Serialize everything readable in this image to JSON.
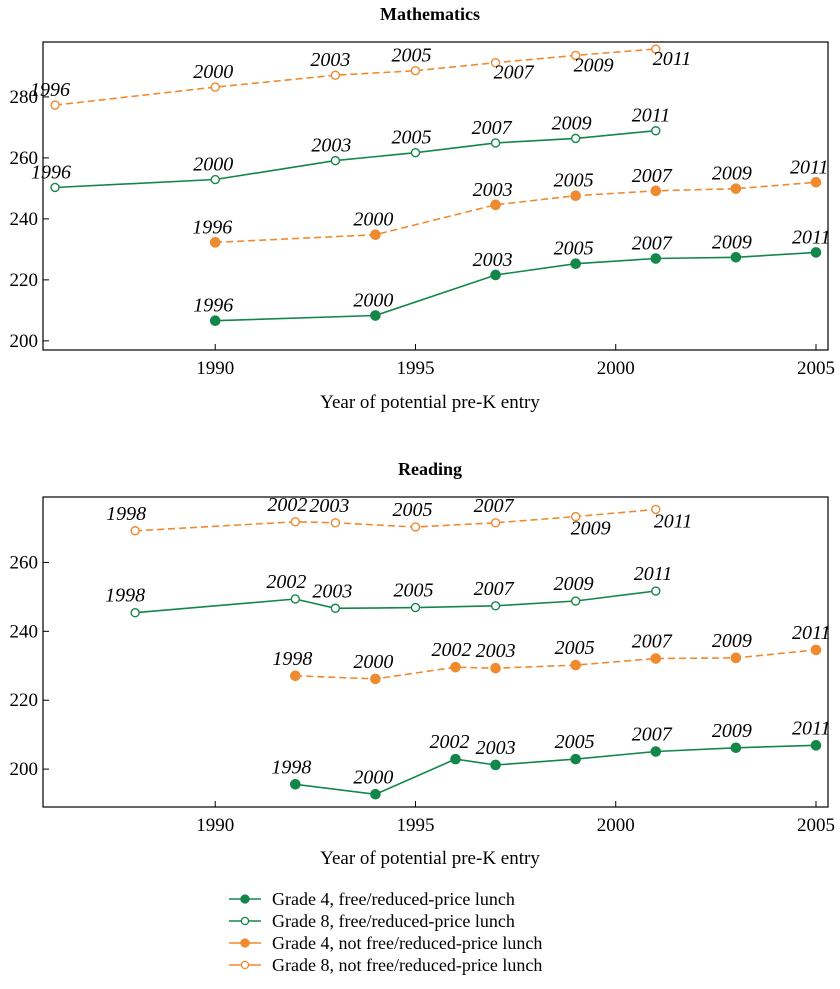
{
  "chart_data": [
    {
      "type": "line",
      "title": "Mathematics",
      "xlabel": "Year of potential pre-K entry",
      "ylabel": "",
      "xlim": [
        1985.7,
        2005.3
      ],
      "ylim": [
        197,
        298
      ],
      "xticks": [
        1990,
        1995,
        2000,
        2005
      ],
      "yticks": [
        200,
        220,
        240,
        260,
        280
      ],
      "grid": false,
      "series": [
        {
          "name": "Grade 8, not free/reduced-price lunch",
          "color": "#ef8a2f",
          "dashed": true,
          "filled": false,
          "x": [
            1986,
            1990,
            1993,
            1995,
            1997,
            1999,
            2001
          ],
          "y": [
            277.3,
            283.2,
            287.1,
            288.6,
            291.2,
            293.6,
            295.7
          ],
          "labels": [
            "1996",
            "2000",
            "2003",
            "2005",
            "2007",
            "2009",
            "2011"
          ]
        },
        {
          "name": "Grade 8, free/reduced-price lunch",
          "color": "#13874a",
          "dashed": false,
          "filled": false,
          "x": [
            1986,
            1990,
            1993,
            1995,
            1997,
            1999,
            2001
          ],
          "y": [
            250.3,
            252.9,
            259.1,
            261.7,
            264.9,
            266.4,
            268.9
          ],
          "labels": [
            "1996",
            "2000",
            "2003",
            "2005",
            "2007",
            "2009",
            "2011"
          ]
        },
        {
          "name": "Grade 4, not free/reduced-price lunch",
          "color": "#ef8a2f",
          "dashed": true,
          "filled": true,
          "x": [
            1990,
            1994,
            1997,
            1999,
            2001,
            2003,
            2005
          ],
          "y": [
            232.3,
            234.8,
            244.6,
            247.6,
            249.2,
            249.9,
            252.0
          ],
          "labels": [
            "1996",
            "2000",
            "2003",
            "2005",
            "2007",
            "2009",
            "2011"
          ]
        },
        {
          "name": "Grade 4, free/reduced-price lunch",
          "color": "#13874a",
          "dashed": false,
          "filled": true,
          "x": [
            1990,
            1994,
            1997,
            1999,
            2001,
            2003,
            2005
          ],
          "y": [
            206.6,
            208.3,
            221.6,
            225.3,
            227.0,
            227.4,
            229.0
          ],
          "labels": [
            "1996",
            "2000",
            "2003",
            "2005",
            "2007",
            "2009",
            "2011"
          ]
        }
      ]
    },
    {
      "type": "line",
      "title": "Reading",
      "xlabel": "Year of potential pre-K entry",
      "ylabel": "",
      "xlim": [
        1985.7,
        2005.3
      ],
      "ylim": [
        189,
        279
      ],
      "xticks": [
        1990,
        1995,
        2000,
        2005
      ],
      "yticks": [
        200,
        220,
        240,
        260
      ],
      "grid": false,
      "series": [
        {
          "name": "Grade 8, not free/reduced-price lunch",
          "color": "#ef8a2f",
          "dashed": true,
          "filled": false,
          "x": [
            1988,
            1992,
            1993,
            1995,
            1997,
            1999,
            2001
          ],
          "y": [
            269.2,
            271.8,
            271.5,
            270.3,
            271.5,
            273.3,
            275.4
          ],
          "labels": [
            "1998",
            "2002",
            "2003",
            "2005",
            "2007",
            "2009",
            "2011"
          ]
        },
        {
          "name": "Grade 8, free/reduced-price lunch",
          "color": "#13874a",
          "dashed": false,
          "filled": false,
          "x": [
            1988,
            1992,
            1993,
            1995,
            1997,
            1999,
            2001
          ],
          "y": [
            245.4,
            249.4,
            246.7,
            246.9,
            247.4,
            248.8,
            251.7
          ],
          "labels": [
            "1998",
            "2002",
            "2003",
            "2005",
            "2007",
            "2009",
            "2011"
          ]
        },
        {
          "name": "Grade 4, not free/reduced-price lunch",
          "color": "#ef8a2f",
          "dashed": true,
          "filled": true,
          "x": [
            1992,
            1994,
            1996,
            1997,
            1999,
            2001,
            2003,
            2005
          ],
          "y": [
            227.1,
            226.2,
            229.6,
            229.3,
            230.2,
            232.1,
            232.3,
            234.6
          ],
          "labels": [
            "1998",
            "2000",
            "2002",
            "2003",
            "2005",
            "2007",
            "2009",
            "2011"
          ]
        },
        {
          "name": "Grade 4, free/reduced-price lunch",
          "color": "#13874a",
          "dashed": false,
          "filled": true,
          "x": [
            1992,
            1994,
            1996,
            1997,
            1999,
            2001,
            2003,
            2005
          ],
          "y": [
            195.6,
            192.7,
            202.9,
            201.2,
            202.9,
            205.1,
            206.2,
            206.9
          ],
          "labels": [
            "1998",
            "2000",
            "2002",
            "2003",
            "2005",
            "2007",
            "2009",
            "2011"
          ]
        }
      ]
    }
  ],
  "legend": {
    "position": "bottom-center",
    "items": [
      {
        "label": "Grade 4, free/reduced-price lunch",
        "color": "#13874a",
        "filled": true
      },
      {
        "label": "Grade 8, free/reduced-price lunch",
        "color": "#13874a",
        "filled": false
      },
      {
        "label": "Grade 4, not free/reduced-price lunch",
        "color": "#ef8a2f",
        "filled": true
      },
      {
        "label": "Grade 8, not free/reduced-price lunch",
        "color": "#ef8a2f",
        "filled": false
      }
    ]
  }
}
